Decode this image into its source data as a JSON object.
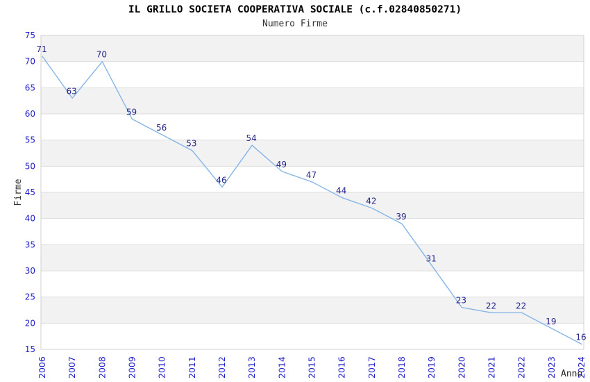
{
  "page": {
    "background_color": "#ffffff"
  },
  "chart_data": {
    "type": "line",
    "title": "IL GRILLO SOCIETA COOPERATIVA SOCIALE (c.f.02840850271)",
    "subtitle": "Numero Firme",
    "xlabel": "Anno",
    "ylabel": "Firme",
    "categories": [
      "2006",
      "2007",
      "2008",
      "2009",
      "2010",
      "2011",
      "2012",
      "2013",
      "2014",
      "2015",
      "2016",
      "2017",
      "2018",
      "2019",
      "2020",
      "2021",
      "2022",
      "2023",
      "2024"
    ],
    "series": [
      {
        "name": "Numero Firme",
        "values": [
          71,
          63,
          70,
          59,
          56,
          53,
          46,
          54,
          49,
          47,
          44,
          42,
          39,
          31,
          23,
          22,
          22,
          19,
          16
        ]
      }
    ],
    "ylim": [
      15,
      75
    ],
    "ytick_step": 5,
    "grid": "horizontal-bands-alternating",
    "legend_position": "none",
    "point_labels_visible": true,
    "colors": {
      "line": "#85B5E8",
      "point_label": "#26268B",
      "tick_label": "#2222CC",
      "band_gray": "#F2F2F2",
      "band_white": "#FFFFFF",
      "grid_line": "#DDDDDD",
      "plot_border": "#D0D0D0",
      "title": "#000000",
      "subtitle": "#333333",
      "axis_title": "#333333"
    }
  }
}
